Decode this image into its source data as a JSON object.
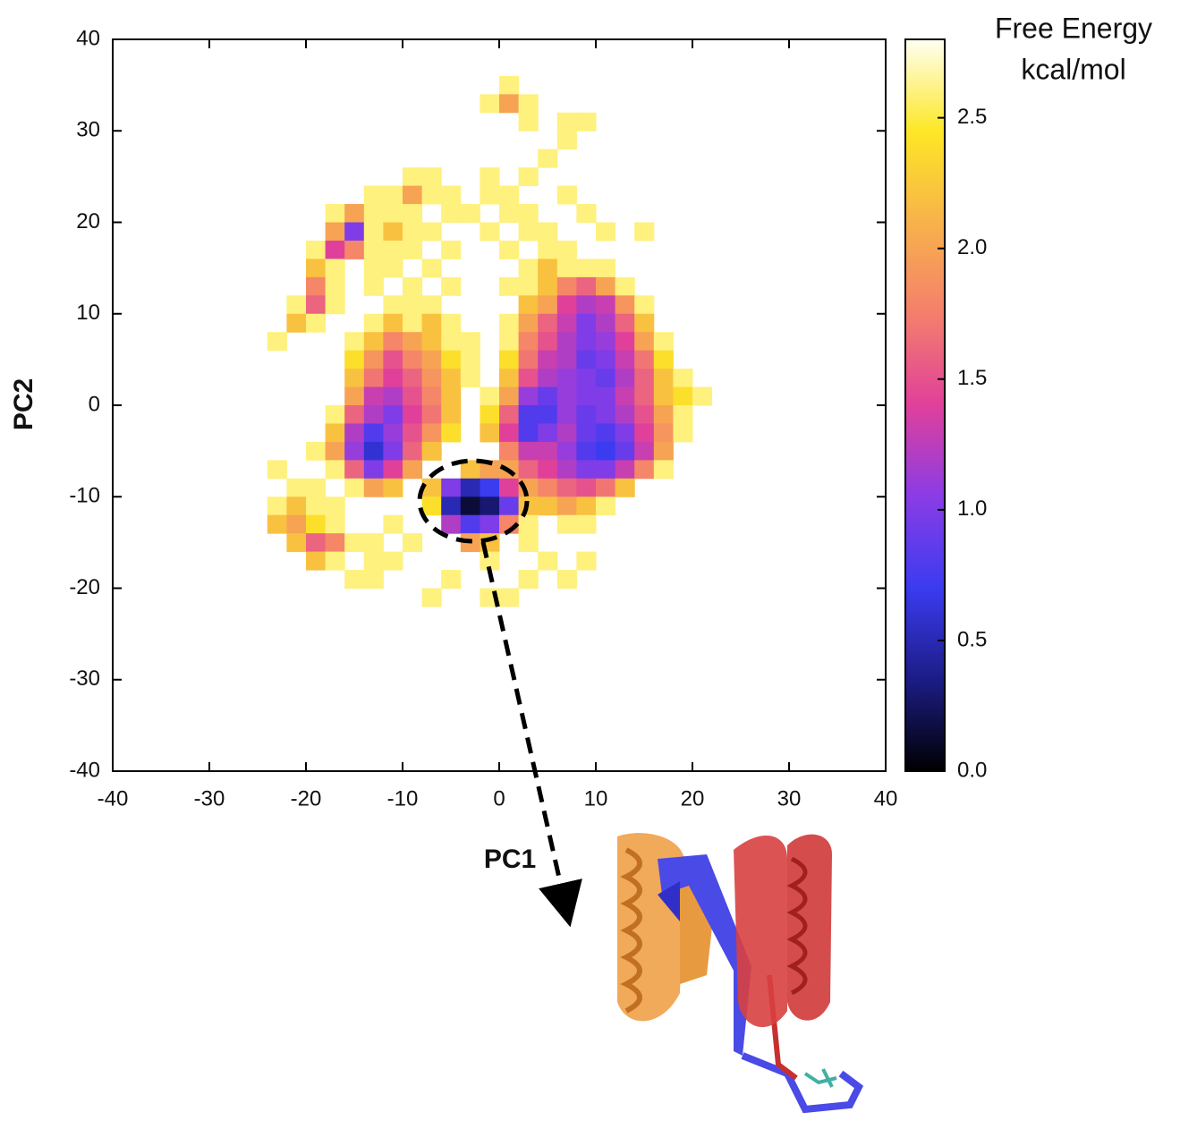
{
  "chart_data": {
    "type": "heatmap",
    "xlabel": "PC1",
    "ylabel": "PC2",
    "colorbar_label": [
      "Free Energy",
      "kcal/mol"
    ],
    "xlim": [
      -40,
      40
    ],
    "ylim": [
      -40,
      40
    ],
    "xticks": [
      -40,
      -30,
      -20,
      -10,
      0,
      10,
      20,
      30,
      40
    ],
    "yticks": [
      -40,
      -30,
      -20,
      -10,
      0,
      10,
      20,
      30,
      40
    ],
    "zlim": [
      0,
      2.8
    ],
    "zticks": [
      {
        "value": 0,
        "label": "0.0"
      },
      0.5,
      {
        "value": 1,
        "label": "1.0"
      },
      1.5,
      {
        "value": 2,
        "label": "2.0"
      },
      2.5
    ],
    "colormap": [
      "#000000",
      "#1c1c86",
      "#3b3bf0",
      "#8a3ce6",
      "#e0409a",
      "#f47f6c",
      "#f8b24a",
      "#fde726",
      "#fffff2"
    ],
    "x": [
      -23,
      -21,
      -19,
      -17,
      -15,
      -13,
      -11,
      -9,
      -7,
      -5,
      -3,
      -1,
      1,
      3,
      5,
      7,
      9,
      11,
      13,
      15,
      17,
      19,
      21
    ],
    "y": [
      35,
      33,
      31,
      29,
      27,
      25,
      23,
      21,
      19,
      17,
      15,
      13,
      11,
      9,
      7,
      5,
      3,
      1,
      -1,
      -3,
      -5,
      -7,
      -9,
      -11,
      -13,
      -15,
      -17,
      -19,
      -21
    ],
    "z": [
      [
        null,
        null,
        null,
        null,
        null,
        null,
        null,
        null,
        null,
        null,
        null,
        null,
        2.6,
        null,
        null,
        null,
        null,
        null,
        null,
        null,
        null,
        null,
        null
      ],
      [
        null,
        null,
        null,
        null,
        null,
        null,
        null,
        null,
        null,
        null,
        null,
        2.6,
        2.0,
        2.6,
        null,
        null,
        null,
        null,
        null,
        null,
        null,
        null,
        null
      ],
      [
        null,
        null,
        null,
        null,
        null,
        null,
        null,
        null,
        null,
        null,
        null,
        null,
        null,
        2.6,
        null,
        2.6,
        2.6,
        null,
        null,
        null,
        null,
        null,
        null
      ],
      [
        null,
        null,
        null,
        null,
        null,
        null,
        null,
        null,
        null,
        null,
        null,
        null,
        null,
        null,
        null,
        2.6,
        null,
        null,
        null,
        null,
        null,
        null,
        null
      ],
      [
        null,
        null,
        null,
        null,
        null,
        null,
        null,
        null,
        null,
        null,
        null,
        null,
        null,
        null,
        2.6,
        null,
        null,
        null,
        null,
        null,
        null,
        null,
        null
      ],
      [
        null,
        null,
        null,
        null,
        null,
        null,
        null,
        2.6,
        2.6,
        null,
        null,
        2.6,
        null,
        2.6,
        null,
        null,
        null,
        null,
        null,
        null,
        null,
        null,
        null
      ],
      [
        null,
        null,
        null,
        null,
        null,
        2.6,
        2.6,
        2.0,
        2.6,
        2.6,
        null,
        2.6,
        2.6,
        null,
        null,
        2.6,
        null,
        null,
        null,
        null,
        null,
        null,
        null
      ],
      [
        null,
        null,
        null,
        2.6,
        2.0,
        2.6,
        2.6,
        2.6,
        null,
        2.6,
        2.6,
        null,
        2.6,
        2.6,
        null,
        null,
        2.6,
        null,
        null,
        null,
        null,
        null,
        null
      ],
      [
        null,
        null,
        null,
        2.0,
        1.0,
        2.6,
        2.2,
        2.6,
        2.6,
        null,
        null,
        2.6,
        null,
        2.6,
        2.6,
        null,
        null,
        2.6,
        null,
        2.6,
        null,
        null,
        null
      ],
      [
        null,
        null,
        2.6,
        1.4,
        1.8,
        2.6,
        2.6,
        2.6,
        null,
        2.6,
        null,
        null,
        2.6,
        null,
        2.6,
        2.6,
        null,
        null,
        null,
        null,
        null,
        null,
        null
      ],
      [
        null,
        null,
        2.2,
        2.6,
        null,
        2.6,
        2.6,
        null,
        2.6,
        null,
        null,
        null,
        null,
        2.6,
        2.2,
        2.6,
        2.6,
        2.6,
        null,
        null,
        null,
        null,
        null
      ],
      [
        null,
        null,
        1.8,
        2.6,
        null,
        2.6,
        null,
        2.6,
        null,
        2.6,
        null,
        null,
        2.6,
        2.6,
        2.2,
        1.8,
        1.6,
        2.0,
        2.6,
        null,
        null,
        null,
        null
      ],
      [
        null,
        2.6,
        1.6,
        2.6,
        null,
        null,
        2.6,
        2.6,
        2.6,
        null,
        null,
        null,
        null,
        2.2,
        2.0,
        1.4,
        1.2,
        1.3,
        1.9,
        2.6,
        null,
        null,
        null
      ],
      [
        null,
        2.2,
        2.6,
        null,
        null,
        2.6,
        2.2,
        2.6,
        2.2,
        2.6,
        null,
        null,
        2.6,
        2.0,
        1.6,
        1.3,
        1.0,
        1.2,
        1.6,
        2.2,
        null,
        null,
        null
      ],
      [
        2.6,
        null,
        null,
        null,
        2.6,
        2.2,
        1.8,
        2.0,
        2.2,
        2.6,
        2.6,
        null,
        2.6,
        1.8,
        1.5,
        1.2,
        1.0,
        1.1,
        1.4,
        2.0,
        2.6,
        null,
        null
      ],
      [
        null,
        null,
        null,
        null,
        2.4,
        1.9,
        1.5,
        1.8,
        2.0,
        2.4,
        2.6,
        null,
        2.4,
        1.7,
        1.3,
        1.2,
        0.9,
        1.0,
        1.3,
        1.7,
        2.4,
        null,
        null
      ],
      [
        null,
        null,
        null,
        null,
        2.2,
        1.7,
        1.4,
        1.6,
        1.9,
        2.2,
        2.6,
        null,
        2.2,
        1.5,
        1.2,
        1.1,
        1.0,
        0.9,
        1.2,
        1.6,
        2.2,
        2.6,
        null
      ],
      [
        null,
        null,
        null,
        null,
        2.0,
        1.3,
        1.2,
        1.5,
        1.8,
        2.2,
        null,
        2.6,
        2.0,
        1.1,
        0.9,
        1.1,
        1.0,
        1.0,
        1.3,
        1.6,
        2.2,
        2.4,
        2.6
      ],
      [
        null,
        null,
        null,
        2.6,
        1.6,
        1.2,
        1.0,
        1.4,
        1.7,
        2.2,
        null,
        2.4,
        1.6,
        0.8,
        0.8,
        1.1,
        0.9,
        1.0,
        1.2,
        1.5,
        2.0,
        2.6,
        null
      ],
      [
        null,
        null,
        null,
        2.2,
        1.2,
        0.8,
        1.1,
        1.5,
        1.9,
        2.4,
        null,
        2.2,
        1.4,
        0.8,
        1.0,
        1.2,
        0.9,
        0.8,
        1.0,
        1.4,
        1.9,
        2.6,
        null
      ],
      [
        null,
        null,
        2.6,
        2.0,
        1.1,
        0.6,
        1.0,
        1.6,
        2.2,
        null,
        null,
        null,
        1.8,
        1.3,
        1.3,
        1.1,
        0.8,
        0.7,
        0.9,
        1.3,
        2.0,
        null,
        null
      ],
      [
        2.6,
        null,
        null,
        2.6,
        1.6,
        1.0,
        1.4,
        2.0,
        null,
        null,
        2.2,
        2.0,
        2.0,
        1.6,
        1.4,
        1.2,
        1.0,
        1.0,
        1.3,
        1.8,
        2.6,
        null,
        null
      ],
      [
        null,
        2.6,
        2.6,
        null,
        2.6,
        2.0,
        2.2,
        null,
        2.2,
        1.0,
        0.5,
        0.7,
        1.4,
        2.0,
        1.8,
        1.6,
        1.5,
        1.7,
        2.2,
        null,
        null,
        null,
        null
      ],
      [
        2.6,
        2.2,
        2.6,
        2.6,
        null,
        null,
        null,
        null,
        2.4,
        0.5,
        0.15,
        0.3,
        0.9,
        2.2,
        2.2,
        2.0,
        2.2,
        2.6,
        null,
        null,
        null,
        null,
        null
      ],
      [
        2.2,
        2.0,
        2.4,
        2.6,
        null,
        null,
        2.6,
        null,
        null,
        1.2,
        0.8,
        1.0,
        1.8,
        2.6,
        null,
        2.6,
        2.6,
        null,
        null,
        null,
        null,
        null,
        null
      ],
      [
        null,
        2.2,
        1.6,
        1.8,
        2.6,
        2.6,
        null,
        2.6,
        null,
        null,
        2.0,
        2.2,
        null,
        2.6,
        null,
        null,
        null,
        null,
        null,
        null,
        null,
        null,
        null
      ],
      [
        null,
        null,
        2.2,
        2.6,
        null,
        2.6,
        2.6,
        null,
        null,
        null,
        null,
        2.6,
        null,
        null,
        2.6,
        null,
        2.6,
        null,
        null,
        null,
        null,
        null,
        null
      ],
      [
        null,
        null,
        null,
        null,
        2.6,
        2.6,
        null,
        null,
        null,
        2.6,
        null,
        null,
        null,
        2.6,
        null,
        2.6,
        null,
        null,
        null,
        null,
        null,
        null,
        null
      ],
      [
        null,
        null,
        null,
        null,
        null,
        null,
        null,
        null,
        2.6,
        null,
        null,
        2.6,
        2.6,
        null,
        null,
        null,
        null,
        null,
        null,
        null,
        null,
        null,
        null
      ]
    ]
  }
}
